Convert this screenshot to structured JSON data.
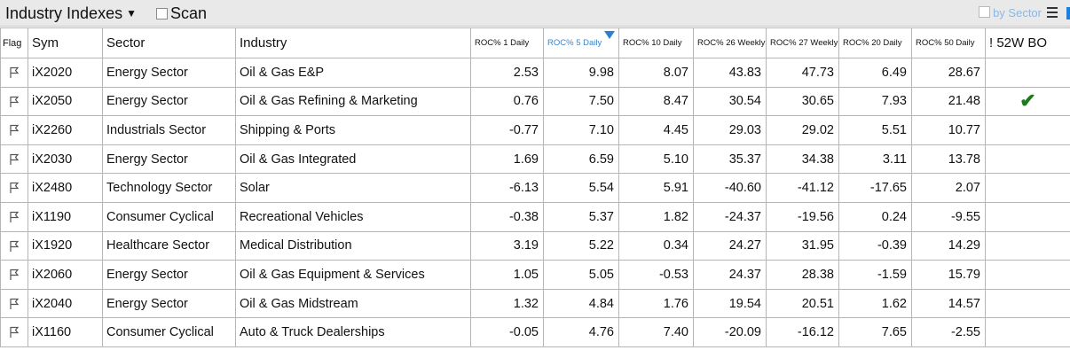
{
  "toolbar": {
    "title": "Industry Indexes",
    "scan_label": "Scan",
    "by_sector_label": "by Sector"
  },
  "columns": {
    "flag": "Flag",
    "sym": "Sym",
    "sector": "Sector",
    "industry": "Industry",
    "roc1": "ROC% 1 Daily",
    "roc5": "ROC% 5 Daily",
    "roc10": "ROC% 10 Daily",
    "roc26": "ROC% 26 Weekly",
    "roc27": "ROC% 27 Weekly",
    "roc20": "ROC% 20 Daily",
    "roc50": "ROC% 50 Daily",
    "bo": "! 52W BO"
  },
  "rows": [
    {
      "sym": "iX2020",
      "sector": "Energy Sector",
      "industry": "Oil & Gas E&P",
      "roc1": "2.53",
      "roc5": "9.98",
      "roc10": "8.07",
      "roc26": "43.83",
      "roc27": "47.73",
      "roc20": "6.49",
      "roc50": "28.67",
      "bo": ""
    },
    {
      "sym": "iX2050",
      "sector": "Energy Sector",
      "industry": "Oil & Gas Refining & Marketing",
      "roc1": "0.76",
      "roc5": "7.50",
      "roc10": "8.47",
      "roc26": "30.54",
      "roc27": "30.65",
      "roc20": "7.93",
      "roc50": "21.48",
      "bo": "✔"
    },
    {
      "sym": "iX2260",
      "sector": "Industrials Sector",
      "industry": "Shipping & Ports",
      "roc1": "-0.77",
      "roc5": "7.10",
      "roc10": "4.45",
      "roc26": "29.03",
      "roc27": "29.02",
      "roc20": "5.51",
      "roc50": "10.77",
      "bo": ""
    },
    {
      "sym": "iX2030",
      "sector": "Energy Sector",
      "industry": "Oil & Gas Integrated",
      "roc1": "1.69",
      "roc5": "6.59",
      "roc10": "5.10",
      "roc26": "35.37",
      "roc27": "34.38",
      "roc20": "3.11",
      "roc50": "13.78",
      "bo": ""
    },
    {
      "sym": "iX2480",
      "sector": "Technology Sector",
      "industry": "Solar",
      "roc1": "-6.13",
      "roc5": "5.54",
      "roc10": "5.91",
      "roc26": "-40.60",
      "roc27": "-41.12",
      "roc20": "-17.65",
      "roc50": "2.07",
      "bo": ""
    },
    {
      "sym": "iX1190",
      "sector": "Consumer Cyclical",
      "industry": "Recreational Vehicles",
      "roc1": "-0.38",
      "roc5": "5.37",
      "roc10": "1.82",
      "roc26": "-24.37",
      "roc27": "-19.56",
      "roc20": "0.24",
      "roc50": "-9.55",
      "bo": ""
    },
    {
      "sym": "iX1920",
      "sector": "Healthcare Sector",
      "industry": "Medical Distribution",
      "roc1": "3.19",
      "roc5": "5.22",
      "roc10": "0.34",
      "roc26": "24.27",
      "roc27": "31.95",
      "roc20": "-0.39",
      "roc50": "14.29",
      "bo": ""
    },
    {
      "sym": "iX2060",
      "sector": "Energy Sector",
      "industry": "Oil & Gas Equipment & Services",
      "roc1": "1.05",
      "roc5": "5.05",
      "roc10": "-0.53",
      "roc26": "24.37",
      "roc27": "28.38",
      "roc20": "-1.59",
      "roc50": "15.79",
      "bo": ""
    },
    {
      "sym": "iX2040",
      "sector": "Energy Sector",
      "industry": "Oil & Gas Midstream",
      "roc1": "1.32",
      "roc5": "4.84",
      "roc10": "1.76",
      "roc26": "19.54",
      "roc27": "20.51",
      "roc20": "1.62",
      "roc50": "14.57",
      "bo": ""
    },
    {
      "sym": "iX1160",
      "sector": "Consumer Cyclical",
      "industry": "Auto & Truck Dealerships",
      "roc1": "-0.05",
      "roc5": "4.76",
      "roc10": "7.40",
      "roc26": "-20.09",
      "roc27": "-16.12",
      "roc20": "7.65",
      "roc50": "-2.55",
      "bo": ""
    }
  ],
  "colors": {
    "check": "#1e7a1e",
    "sort_accent": "#2f7fd0"
  },
  "sort": {
    "column": "roc5",
    "direction": "descending"
  }
}
